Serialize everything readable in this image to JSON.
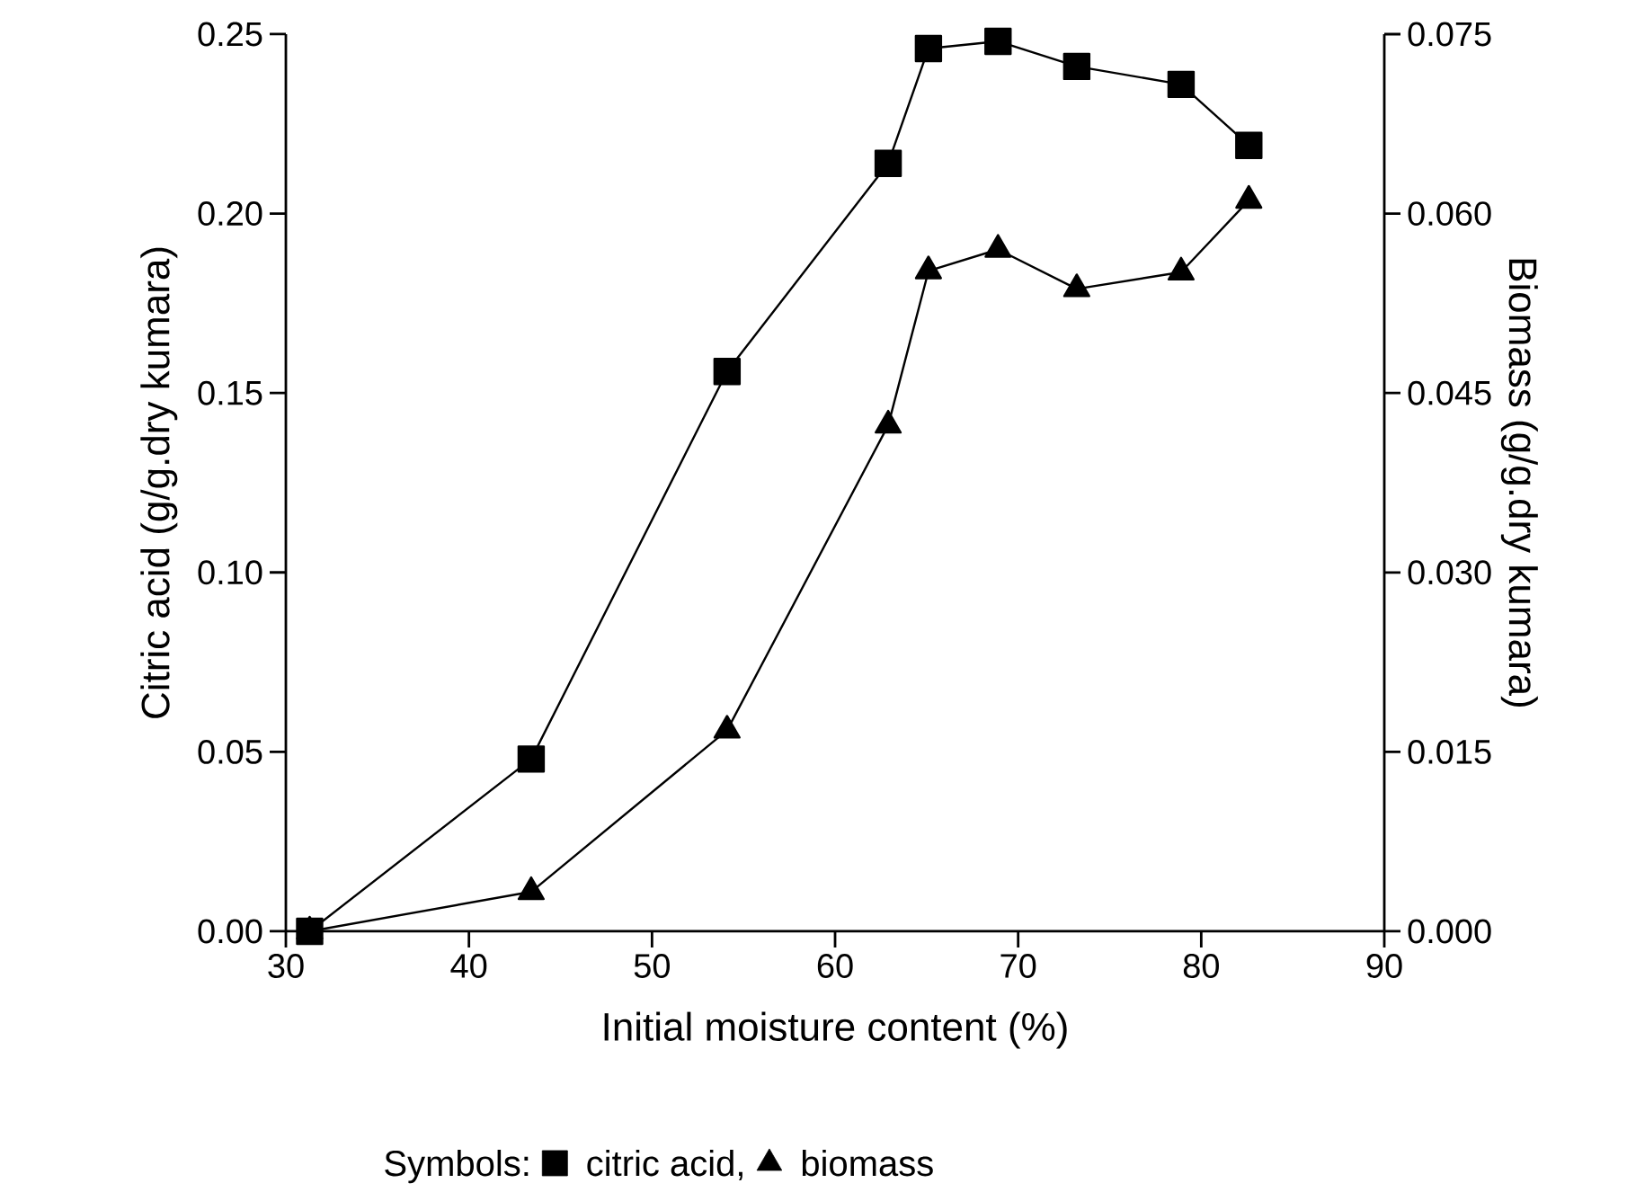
{
  "chart_data": {
    "type": "line",
    "xlabel": "Initial moisture content (%)",
    "ylabel": "Citric acid (g/g.dry kumara)",
    "y2label": "Biomass (g/g.dry kumara)",
    "legend_title": "Symbols:",
    "legend": "bottom",
    "xlim": [
      30,
      90
    ],
    "xticks": [
      30,
      40,
      50,
      60,
      70,
      80,
      90
    ],
    "ylim": [
      0,
      0.25
    ],
    "yticks": [
      {
        "value": 0,
        "label": "0.00"
      },
      {
        "value": 0.05,
        "label": "0.05"
      },
      {
        "value": 0.1,
        "label": "0.10"
      },
      {
        "value": 0.15,
        "label": "0.15"
      },
      {
        "value": 0.2,
        "label": "0.20"
      },
      {
        "value": 0.25,
        "label": "0.25"
      }
    ],
    "y2lim": [
      0,
      0.075
    ],
    "y2ticks": [
      {
        "value": 0,
        "label": "0.000"
      },
      {
        "value": 0.015,
        "label": "0.015"
      },
      {
        "value": 0.03,
        "label": "0.030"
      },
      {
        "value": 0.045,
        "label": "0.045"
      },
      {
        "value": 0.06,
        "label": "0.060"
      },
      {
        "value": 0.075,
        "label": "0.075"
      }
    ],
    "grid": false,
    "series": [
      {
        "name": "citric acid,",
        "color": "#000000",
        "marker": "square",
        "x": [
          31.3,
          43.4,
          54.1,
          62.9,
          65.1,
          68.9,
          73.2,
          78.9,
          82.6
        ],
        "values": [
          0.0,
          0.048,
          0.156,
          0.214,
          0.246,
          0.248,
          0.241,
          0.236,
          0.219
        ]
      },
      {
        "name": "biomass",
        "color": "#000000",
        "marker": "triangle",
        "axis": "y2",
        "x": [
          31.3,
          43.4,
          54.1,
          62.9,
          65.1,
          68.9,
          73.2,
          78.9,
          82.6
        ],
        "values": [
          0.0,
          0.0033,
          0.0168,
          0.0423,
          0.0552,
          0.057,
          0.0537,
          0.0551,
          0.0611
        ]
      }
    ]
  }
}
